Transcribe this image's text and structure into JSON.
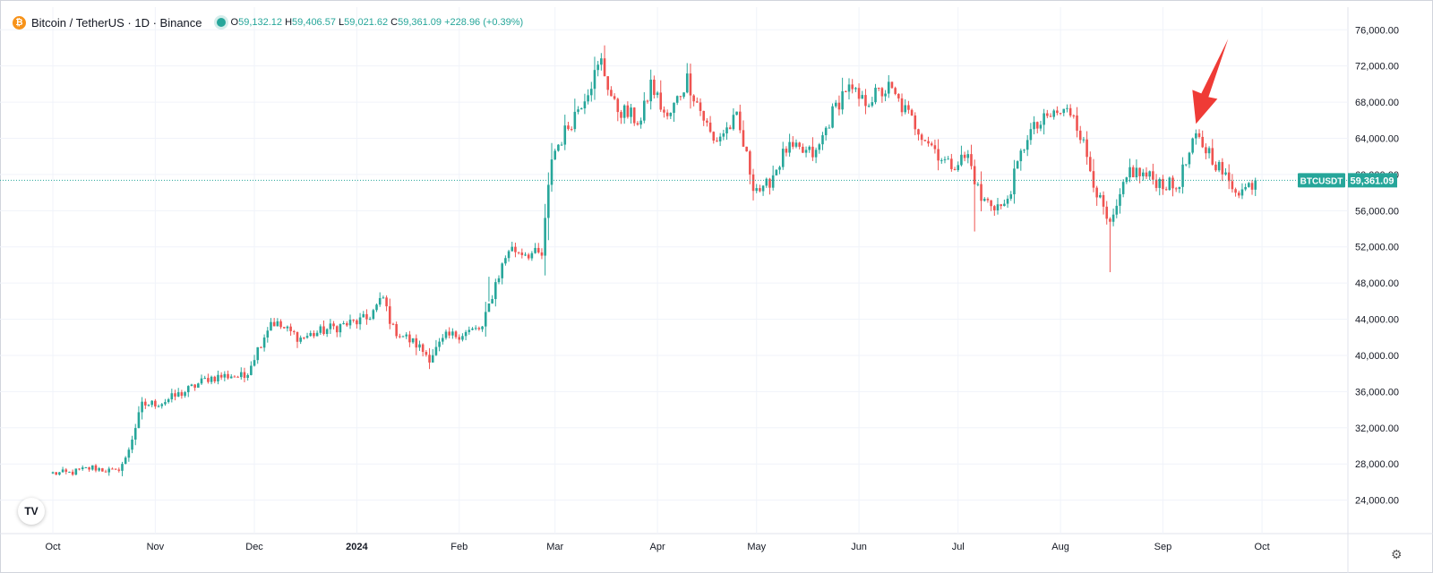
{
  "header": {
    "symbol": "Bitcoin / TetherUS · 1D · Binance",
    "open_label": "O",
    "open": "59,132.12",
    "high_label": "H",
    "high": "59,406.57",
    "low_label": "L",
    "low": "59,021.62",
    "close_label": "C",
    "close": "59,361.09",
    "change": "+228.96 (+0.39%)"
  },
  "colors": {
    "up": "#26a69a",
    "down": "#ef5350",
    "grid": "#f0f3fa",
    "axis_text": "#131722"
  },
  "price_badge": {
    "ticker": "BTCUSDT",
    "price": "59,361.09",
    "value": 59361
  },
  "chart_data": {
    "type": "candlestick",
    "y_ticks": [
      "76,000.00",
      "72,000.00",
      "68,000.00",
      "64,000.00",
      "60,000.00",
      "56,000.00",
      "52,000.00",
      "48,000.00",
      "44,000.00",
      "40,000.00",
      "36,000.00",
      "32,000.00",
      "28,000.00",
      "24,000.00"
    ],
    "y_tick_values": [
      76000,
      72000,
      68000,
      64000,
      60000,
      56000,
      52000,
      48000,
      44000,
      40000,
      36000,
      32000,
      28000,
      24000
    ],
    "ylim": [
      20300,
      78500
    ],
    "x_labels": [
      "Oct",
      "Nov",
      "Dec",
      "2024",
      "Feb",
      "Mar",
      "Apr",
      "May",
      "Jun",
      "Jul",
      "Aug",
      "Sep",
      "Oct"
    ],
    "x_label_days": [
      0,
      31,
      61,
      92,
      123,
      152,
      183,
      213,
      244,
      274,
      305,
      336,
      366
    ],
    "day_range": [
      -16,
      392
    ],
    "series": {
      "start": "2023-09-15",
      "close_anchors": [
        [
          0,
          26967
        ],
        [
          5,
          27000
        ],
        [
          12,
          27600
        ],
        [
          19,
          27100
        ],
        [
          22,
          28500
        ],
        [
          27,
          34500
        ],
        [
          33,
          34800
        ],
        [
          40,
          36000
        ],
        [
          47,
          37500
        ],
        [
          54,
          37800
        ],
        [
          58,
          37600
        ],
        [
          66,
          43800
        ],
        [
          75,
          41900
        ],
        [
          84,
          43000
        ],
        [
          95,
          44000
        ],
        [
          100,
          46300
        ],
        [
          103,
          42900
        ],
        [
          110,
          41200
        ],
        [
          114,
          39800
        ],
        [
          119,
          42000
        ],
        [
          130,
          43000
        ],
        [
          134,
          48000
        ],
        [
          138,
          51800
        ],
        [
          148,
          51000
        ],
        [
          151,
          62000
        ],
        [
          157,
          66000
        ],
        [
          166,
          72400
        ],
        [
          170,
          67500
        ],
        [
          178,
          65800
        ],
        [
          181,
          70000
        ],
        [
          186,
          66000
        ],
        [
          192,
          70600
        ],
        [
          200,
          63600
        ],
        [
          207,
          66100
        ],
        [
          212,
          59000
        ],
        [
          215,
          58000
        ],
        [
          222,
          62800
        ],
        [
          231,
          62200
        ],
        [
          235,
          66000
        ],
        [
          240,
          69600
        ],
        [
          245,
          68000
        ],
        [
          253,
          69500
        ],
        [
          260,
          66000
        ],
        [
          271,
          61000
        ],
        [
          277,
          62000
        ],
        [
          281,
          57200
        ],
        [
          288,
          56300
        ],
        [
          295,
          64400
        ],
        [
          303,
          66700
        ],
        [
          309,
          67000
        ],
        [
          317,
          56900
        ],
        [
          320,
          54000
        ],
        [
          326,
          60500
        ],
        [
          335,
          59200
        ],
        [
          340,
          58500
        ],
        [
          346,
          64000
        ],
        [
          350,
          62500
        ],
        [
          356,
          59000
        ],
        [
          360,
          58200
        ],
        [
          364,
          59361
        ]
      ],
      "special_lows": [
        [
          279,
          53700
        ],
        [
          320,
          49200
        ],
        [
          132,
          48700
        ]
      ]
    }
  }
}
